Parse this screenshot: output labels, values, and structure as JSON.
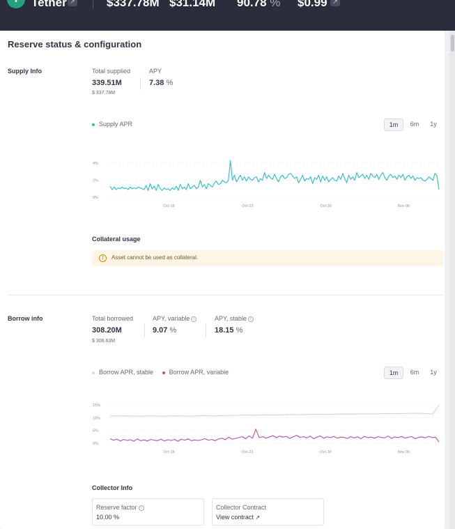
{
  "header": {
    "asset_symbol": "T",
    "asset_name": "Tether",
    "reserve_size": "$337.78M",
    "available_liquidity": "$31.14M",
    "utilization": "90.78",
    "utilization_unit": "%",
    "oracle_price": "$0.99",
    "colors": {
      "bg": "#2b2d3c",
      "asset": "#26a17b"
    }
  },
  "card": {
    "title": "Reserve status & configuration"
  },
  "supply": {
    "section_label": "Supply Info",
    "total_supplied_label": "Total supplied",
    "total_supplied_value": "339.51M",
    "total_supplied_usd": "$ 337.78M",
    "apy_label": "APY",
    "apy_value": "7.38",
    "apy_unit": "%",
    "legend_label": "Supply APR",
    "legend_color": "#2ebac6",
    "timeframes": [
      "1m",
      "6m",
      "1y"
    ],
    "active_timeframe": "1m",
    "collateral_title": "Collateral usage",
    "collateral_warning": "Asset cannot be used as collateral.",
    "warning_icon": "alert-circle-icon"
  },
  "borrow": {
    "section_label": "Borrow info",
    "total_borrowed_label": "Total borrowed",
    "total_borrowed_value": "308.20M",
    "total_borrowed_usd": "$ 306.63M",
    "apy_variable_label": "APY, variable",
    "apy_variable_value": "9.07",
    "apy_stable_label": "APY, stable",
    "apy_stable_value": "18.15",
    "unit": "%",
    "legend_stable": "Borrow APR, stable",
    "legend_variable": "Borrow APR, variable",
    "stable_color": "#e7c6df",
    "variable_color": "#b6509e",
    "timeframes": [
      "1m",
      "6m",
      "1y"
    ],
    "active_timeframe": "1m"
  },
  "collector": {
    "title": "Collector Info",
    "reserve_factor_label": "Reserve factor",
    "reserve_factor_value": "10.00",
    "reserve_factor_unit": "%",
    "contract_label": "Collector Contract",
    "contract_link": "View contract",
    "link_icon": "external-link-icon"
  },
  "chart_data": [
    {
      "type": "line",
      "xticks": [
        "Oct 16",
        "Oct 23",
        "Oct 30",
        "Nov 06"
      ],
      "yticks": [
        "0%",
        "2%",
        "4%"
      ],
      "ylim": [
        0,
        5
      ],
      "grid": true,
      "legend_placement": "top-left",
      "series": [
        {
          "name": "Supply APR",
          "color": "#2ebac6",
          "values": [
            1.3,
            0.9,
            1.2,
            0.9,
            1.1,
            1.0,
            1.2,
            1.0,
            1.1,
            0.9,
            1.2,
            1.0,
            1.1,
            1.0,
            1.2,
            1.1,
            1.0,
            0.9,
            1.4,
            0.8,
            1.6,
            1.0,
            1.3,
            0.8,
            1.5,
            1.0,
            0.8,
            1.1,
            0.9,
            1.0,
            0.8,
            1.1,
            0.9,
            1.3,
            0.8,
            1.5,
            1.0,
            1.2,
            0.9,
            1.6,
            1.0,
            1.2,
            1.4,
            1.0,
            1.2,
            2.0,
            1.2,
            1.5,
            1.0,
            1.6,
            1.4,
            1.2,
            1.7,
            1.9,
            1.5,
            1.6,
            2.0,
            1.8,
            1.7,
            2.0,
            4.3,
            2.0,
            2.6,
            1.8,
            2.2,
            2.6,
            2.0,
            2.4,
            1.9,
            2.4,
            2.1,
            2.0,
            2.3,
            2.4,
            1.8,
            2.2,
            2.0,
            2.9,
            2.2,
            2.6,
            2.3,
            2.1,
            2.7,
            2.2,
            1.8,
            2.4,
            2.6,
            2.2,
            2.3,
            2.7,
            2.8,
            2.5,
            2.2,
            2.4,
            1.7,
            2.1,
            2.6,
            1.9,
            2.2,
            2.1,
            2.4,
            1.6,
            2.3,
            2.1,
            2.6,
            1.8,
            2.5,
            2.0,
            2.4,
            1.8,
            2.1,
            2.3,
            2.0,
            1.9,
            2.5,
            2.1,
            2.8,
            2.2,
            1.7,
            2.6,
            2.1,
            2.4,
            2.0,
            2.9,
            2.3,
            2.5,
            2.7,
            2.2,
            2.6,
            2.1,
            2.8,
            2.5,
            2.3,
            2.7,
            2.1,
            2.6,
            2.9,
            2.3,
            2.0,
            2.5,
            2.7,
            2.3,
            2.5,
            2.1,
            2.6,
            2.3,
            2.7,
            2.0,
            2.4,
            2.6,
            2.2,
            2.5,
            2.0,
            2.3,
            2.2,
            2.3,
            2.0,
            1.9,
            2.1,
            2.4,
            2.2,
            2.0,
            2.8,
            2.5,
            0.9
          ]
        }
      ]
    },
    {
      "type": "line",
      "xticks": [
        "Oct 16",
        "Oct 23",
        "Oct 30",
        "Nov 06"
      ],
      "yticks": [
        "0%",
        "5%",
        "10%",
        "15%"
      ],
      "ylim": [
        0,
        18
      ],
      "grid": true,
      "legend_placement": "top-left",
      "series": [
        {
          "name": "Borrow APR, stable",
          "color": "#e7c6df",
          "values": [
            10.7,
            10.7,
            10.7,
            10.7,
            10.6,
            10.6,
            10.7,
            10.7,
            10.6,
            10.6,
            10.7,
            10.7,
            10.7,
            10.6,
            10.7,
            10.8,
            10.8,
            10.7,
            10.8,
            10.8,
            10.9,
            10.9,
            11.0,
            11.0,
            11.0,
            11.1,
            11.1,
            11.1,
            11.1,
            11.2,
            11.2,
            11.2,
            11.2,
            11.3,
            11.3,
            11.3,
            11.3,
            11.4,
            11.4,
            11.4,
            11.4,
            11.5,
            11.5,
            11.5,
            11.5,
            11.6,
            11.6,
            11.6,
            11.6,
            11.7,
            11.7,
            11.7,
            11.6,
            11.5,
            15.0
          ]
        },
        {
          "name": "Borrow APR, variable",
          "color": "#b6509e",
          "values": [
            1.8,
            1.2,
            1.6,
            0.9,
            1.5,
            1.1,
            1.4,
            0.8,
            1.7,
            1.0,
            1.3,
            0.9,
            1.5,
            1.2,
            1.0,
            1.6,
            0.9,
            1.4,
            1.1,
            1.5,
            0.8,
            1.6,
            1.2,
            1.7,
            1.0,
            1.3,
            1.1,
            1.4,
            1.8,
            1.2,
            1.5,
            1.0,
            1.7,
            2.0,
            1.4,
            2.4,
            1.6,
            1.9,
            2.2,
            2.6,
            1.8,
            2.9,
            2.0,
            5.5,
            2.2,
            2.6,
            2.0,
            2.5,
            3.0,
            2.2,
            2.8,
            2.4,
            2.7,
            1.9,
            2.5,
            3.1,
            2.3,
            2.6,
            2.1,
            2.8,
            1.8,
            2.4,
            2.9,
            2.0,
            2.5,
            2.2,
            2.7,
            2.0,
            2.4,
            2.3,
            1.9,
            2.6,
            2.1,
            2.5,
            1.8,
            2.7,
            2.2,
            2.4,
            2.0,
            2.6,
            2.3,
            2.1,
            2.8,
            1.9,
            2.5,
            2.2,
            2.7,
            2.0,
            2.4,
            2.6,
            1.8,
            2.3,
            2.5,
            2.1,
            2.7,
            2.2,
            2.4,
            0.5
          ]
        }
      ]
    }
  ]
}
